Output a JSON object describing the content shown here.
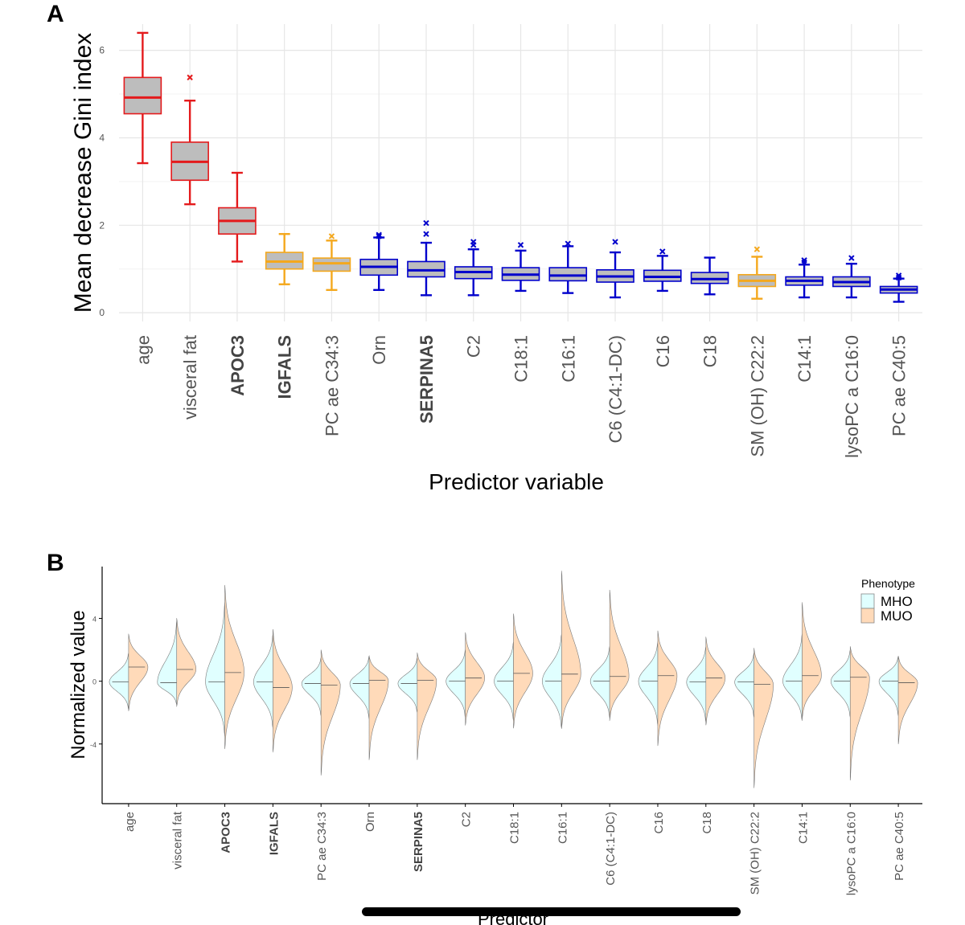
{
  "panel_a": {
    "letter": "A",
    "chart_data": {
      "type": "box",
      "ylabel": "Mean decrease Gini index",
      "xlabel": "Predictor variable",
      "ylim": [
        -0.2,
        6.6
      ],
      "yticks": [
        0,
        2,
        4,
        6
      ],
      "grid": true,
      "categories": [
        "age",
        "visceral fat",
        "APOC3",
        "IGFALS",
        "PC ae C34:3",
        "Orn",
        "SERPINA5",
        "C2",
        "C18:1",
        "C16:1",
        "C6 (C4:1-DC)",
        "C16",
        "C18",
        "SM (OH) C22:2",
        "C14:1",
        "lysoPC a C16:0",
        "PC ae C40:5"
      ],
      "bold_categories": [
        "APOC3",
        "IGFALS",
        "SERPINA5"
      ],
      "colors": [
        "#e41a1c",
        "#e41a1c",
        "#e41a1c",
        "#f4a81d",
        "#f4a81d",
        "#0000cc",
        "#0000cc",
        "#0000cc",
        "#0000cc",
        "#0000cc",
        "#0000cc",
        "#0000cc",
        "#0000cc",
        "#f4a81d",
        "#0000cc",
        "#0000cc",
        "#0000cc"
      ],
      "box_fill": "#bdbdbd",
      "boxes": [
        {
          "min": 3.42,
          "q1": 4.55,
          "median": 4.92,
          "q3": 5.38,
          "max": 6.4,
          "outliers": []
        },
        {
          "min": 2.48,
          "q1": 3.03,
          "median": 3.45,
          "q3": 3.9,
          "max": 4.85,
          "outliers": [
            5.38
          ]
        },
        {
          "min": 1.17,
          "q1": 1.8,
          "median": 2.1,
          "q3": 2.4,
          "max": 3.2,
          "outliers": []
        },
        {
          "min": 0.65,
          "q1": 1.0,
          "median": 1.17,
          "q3": 1.38,
          "max": 1.8,
          "outliers": []
        },
        {
          "min": 0.52,
          "q1": 0.95,
          "median": 1.13,
          "q3": 1.25,
          "max": 1.65,
          "outliers": [
            1.75
          ]
        },
        {
          "min": 0.52,
          "q1": 0.86,
          "median": 1.05,
          "q3": 1.22,
          "max": 1.72,
          "outliers": [
            1.78,
            1.75
          ]
        },
        {
          "min": 0.4,
          "q1": 0.82,
          "median": 0.97,
          "q3": 1.17,
          "max": 1.6,
          "outliers": [
            1.8,
            2.05
          ]
        },
        {
          "min": 0.4,
          "q1": 0.78,
          "median": 0.93,
          "q3": 1.05,
          "max": 1.45,
          "outliers": [
            1.55,
            1.62
          ]
        },
        {
          "min": 0.5,
          "q1": 0.74,
          "median": 0.87,
          "q3": 1.03,
          "max": 1.42,
          "outliers": [
            1.55
          ]
        },
        {
          "min": 0.45,
          "q1": 0.73,
          "median": 0.85,
          "q3": 1.03,
          "max": 1.52,
          "outliers": [
            1.58
          ]
        },
        {
          "min": 0.35,
          "q1": 0.7,
          "median": 0.83,
          "q3": 0.98,
          "max": 1.38,
          "outliers": [
            1.62
          ]
        },
        {
          "min": 0.5,
          "q1": 0.72,
          "median": 0.82,
          "q3": 0.97,
          "max": 1.3,
          "outliers": [
            1.4
          ]
        },
        {
          "min": 0.42,
          "q1": 0.67,
          "median": 0.77,
          "q3": 0.92,
          "max": 1.26,
          "outliers": []
        },
        {
          "min": 0.32,
          "q1": 0.6,
          "median": 0.73,
          "q3": 0.87,
          "max": 1.28,
          "outliers": [
            1.45
          ]
        },
        {
          "min": 0.35,
          "q1": 0.63,
          "median": 0.73,
          "q3": 0.82,
          "max": 1.1,
          "outliers": [
            1.2,
            1.15
          ]
        },
        {
          "min": 0.35,
          "q1": 0.6,
          "median": 0.7,
          "q3": 0.82,
          "max": 1.12,
          "outliers": [
            1.25
          ]
        },
        {
          "min": 0.25,
          "q1": 0.45,
          "median": 0.53,
          "q3": 0.6,
          "max": 0.78,
          "outliers": [
            0.85,
            0.8
          ]
        }
      ]
    }
  },
  "panel_b": {
    "letter": "B",
    "chart_data": {
      "type": "split-violin",
      "ylabel": "Normalized value",
      "xlabel": "Predictor",
      "ylim": [
        -7.8,
        7.3
      ],
      "yticks": [
        -4,
        0,
        4
      ],
      "grid": false,
      "categories": [
        "age",
        "visceral fat",
        "APOC3",
        "IGFALS",
        "PC ae C34:3",
        "Orn",
        "SERPINA5",
        "C2",
        "C18:1",
        "C16:1",
        "C6 (C4:1-DC)",
        "C16",
        "C18",
        "SM (OH) C22:2",
        "C14:1",
        "lysoPC a C16:0",
        "PC ae C40:5"
      ],
      "bold_categories": [
        "APOC3",
        "IGFALS",
        "SERPINA5"
      ],
      "legend": {
        "title": "Phenotype",
        "position": "top-right",
        "entries": [
          "MHO",
          "MUO"
        ]
      },
      "series_colors": [
        "#e0ffff",
        "#ffdab9"
      ],
      "series": [
        {
          "name": "MHO",
          "median": [
            -0.05,
            -0.1,
            -0.05,
            -0.05,
            -0.15,
            -0.15,
            -0.15,
            0.0,
            0.0,
            0.0,
            0.0,
            0.0,
            -0.05,
            -0.05,
            0.0,
            0.0,
            0.0
          ],
          "min": [
            -1.8,
            -1.5,
            -3.5,
            -3.0,
            -2.2,
            -2.4,
            -2.0,
            -2.3,
            -2.5,
            -3.0,
            -2.3,
            -2.8,
            -2.6,
            -2.3,
            -2.5,
            -2.3,
            -2.2
          ],
          "max": [
            1.8,
            3.8,
            5.0,
            3.0,
            1.5,
            1.6,
            1.5,
            2.0,
            2.5,
            3.0,
            2.2,
            2.5,
            2.2,
            1.8,
            3.0,
            2.0,
            1.6
          ]
        },
        {
          "name": "MUO",
          "median": [
            0.9,
            0.75,
            0.55,
            -0.4,
            -0.25,
            0.05,
            0.05,
            0.2,
            0.5,
            0.45,
            0.3,
            0.35,
            0.2,
            -0.2,
            0.35,
            0.25,
            -0.1
          ],
          "min": [
            -1.9,
            -1.6,
            -4.3,
            -4.5,
            -6.0,
            -5.0,
            -5.0,
            -2.8,
            -3.0,
            -3.0,
            -2.5,
            -4.1,
            -2.8,
            -6.8,
            -2.4,
            -6.3,
            -4.0
          ],
          "max": [
            3.0,
            4.0,
            6.1,
            3.3,
            2.0,
            1.6,
            1.8,
            3.1,
            4.3,
            7.0,
            5.8,
            3.2,
            2.8,
            2.1,
            5.0,
            2.2,
            1.6
          ]
        }
      ]
    }
  }
}
